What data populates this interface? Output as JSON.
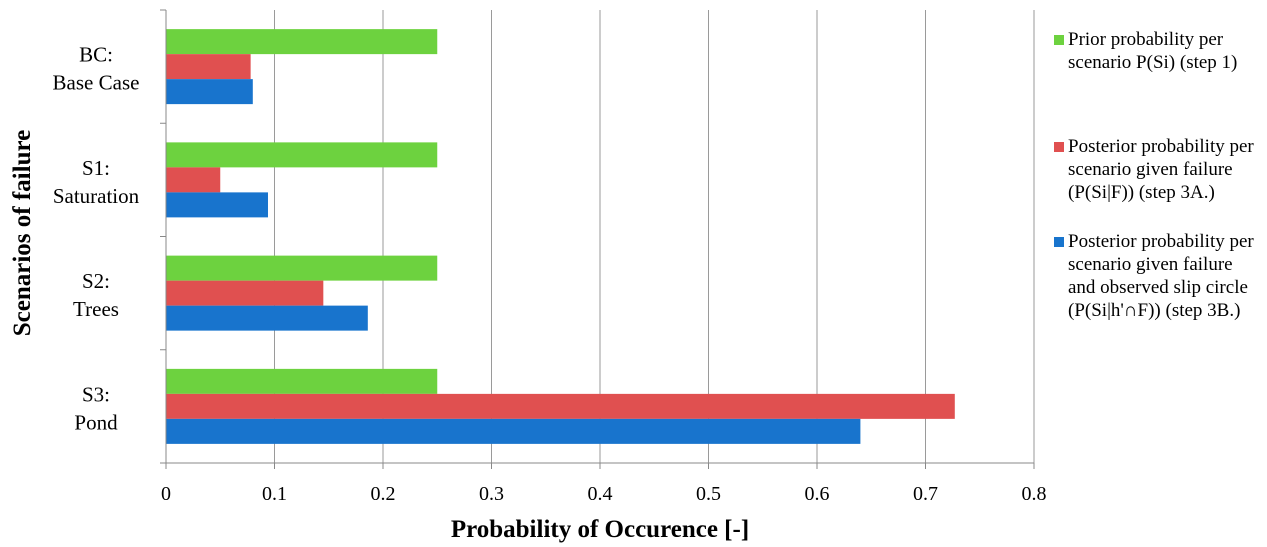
{
  "chart_data": {
    "type": "bar",
    "orientation": "horizontal",
    "xlabel": "Probability of Occurence [-]",
    "ylabel": "Scenarios of failure",
    "xlim": [
      0,
      0.8
    ],
    "xticks": [
      "0",
      "0.1",
      "0.2",
      "0.3",
      "0.4",
      "0.5",
      "0.6",
      "0.7",
      "0.8"
    ],
    "categories": [
      [
        "BC:",
        "Base Case"
      ],
      [
        "S1:",
        "Saturation"
      ],
      [
        "S2:",
        "Trees"
      ],
      [
        "S3:",
        "Pond"
      ]
    ],
    "grid": "vertical",
    "legend_position": "right",
    "series": [
      {
        "name": "Prior probability per scenario P(Si) (step 1)",
        "color": "#6DD23F",
        "values": [
          0.25,
          0.25,
          0.25,
          0.25
        ]
      },
      {
        "name": "Posterior probability per scenario given failure (P(Si|F)) (step 3A.)",
        "color": "#E05050",
        "values": [
          0.078,
          0.05,
          0.145,
          0.727
        ]
      },
      {
        "name": "Posterior probability per scenario given failure and observed slip circle (P(Si|h'∩F)) (step 3B.)",
        "color": "#1874CD",
        "values": [
          0.08,
          0.094,
          0.186,
          0.64
        ]
      }
    ]
  }
}
